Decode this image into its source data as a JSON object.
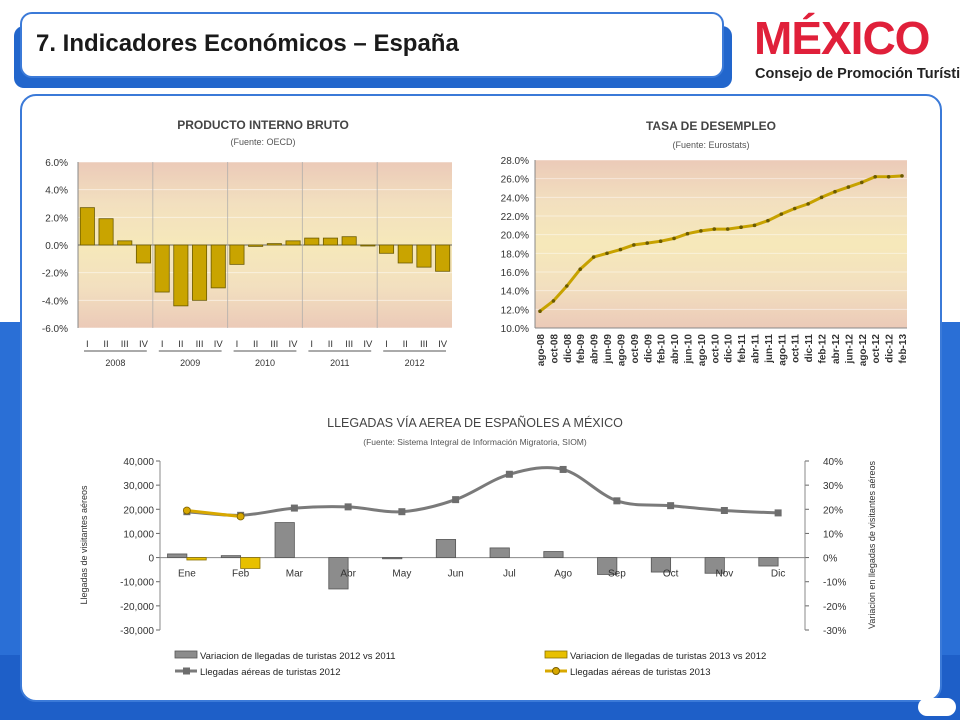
{
  "page": {
    "title": "7. Indicadores Económicos – España",
    "logo_text": "MÉXICO",
    "logo_subtitle": "Consejo de Promoción Turística",
    "colors": {
      "accent_blue": "#2a6fd6",
      "bar_gold": "#c9a400",
      "bar_gray": "#8c8c8c",
      "line_gray": "#7a7a7a",
      "line_gold": "#d8a800"
    }
  },
  "chart_data": [
    {
      "type": "bar",
      "title": "PRODUCTO INTERNO BRUTO",
      "subtitle": "(Fuente: OECD)",
      "yticks": [
        "6.0%",
        "4.0%",
        "2.0%",
        "0.0%",
        "-2.0%",
        "-4.0%",
        "-6.0%"
      ],
      "ylim": [
        -6,
        6
      ],
      "quarter_labels": [
        "I",
        "II",
        "III",
        "IV"
      ],
      "years": [
        "2008",
        "2009",
        "2010",
        "2011",
        "2012"
      ],
      "values": [
        2.7,
        1.9,
        0.3,
        -1.3,
        -3.4,
        -4.4,
        -4.0,
        -3.1,
        -1.4,
        -0.1,
        0.1,
        0.3,
        0.5,
        0.5,
        0.6,
        0.0,
        -0.6,
        -1.3,
        -1.6,
        -1.9
      ]
    },
    {
      "type": "line",
      "title": "TASA DE DESEMPLEO",
      "subtitle": "(Fuente: Eurostats)",
      "yticks": [
        "28.0%",
        "26.0%",
        "24.0%",
        "22.0%",
        "20.0%",
        "18.0%",
        "16.0%",
        "14.0%",
        "12.0%",
        "10.0%"
      ],
      "ylim": [
        10,
        28
      ],
      "xticks": [
        "ago-08",
        "oct-08",
        "dic-08",
        "feb-09",
        "abr-09",
        "jun-09",
        "ago-09",
        "oct-09",
        "dic-09",
        "feb-10",
        "abr-10",
        "jun-10",
        "ago-10",
        "oct-10",
        "dic-10",
        "feb-11",
        "abr-11",
        "jun-11",
        "ago-11",
        "oct-11",
        "dic-11",
        "feb-12",
        "abr-12",
        "jun-12",
        "ago-12",
        "oct-12",
        "dic-12",
        "feb-13"
      ],
      "values": [
        11.8,
        12.9,
        14.5,
        16.3,
        17.6,
        18.0,
        18.4,
        18.9,
        19.1,
        19.3,
        19.6,
        20.1,
        20.4,
        20.6,
        20.6,
        20.8,
        21.0,
        21.5,
        22.2,
        22.8,
        23.3,
        24.0,
        24.6,
        25.1,
        25.6,
        26.2,
        26.2,
        26.3
      ]
    },
    {
      "type": "bar",
      "title": "LLEGADAS VÍA AEREA DE ESPAÑOLES A MÉXICO",
      "subtitle": "(Fuente: Sistema Integral de Información Migratoria, SIOM)",
      "categories": [
        "Ene",
        "Feb",
        "Mar",
        "Abr",
        "May",
        "Jun",
        "Jul",
        "Ago",
        "Sep",
        "Oct",
        "Nov",
        "Dic"
      ],
      "ylabel": "Llegadas de visitantes aéreos",
      "y2label": "Variacion en llegadas de visitantes aéreos",
      "yticks": [
        "40,000",
        "30,000",
        "20,000",
        "10,000",
        "0",
        "-10,000",
        "-20,000",
        "-30,000"
      ],
      "ylim": [
        -30000,
        40000
      ],
      "y2ticks": [
        "40%",
        "30%",
        "20%",
        "10%",
        "0%",
        "-10%",
        "-20%",
        "-30%"
      ],
      "y2lim": [
        -30,
        40
      ],
      "series": [
        {
          "name": "Variacion de llegadas de turistas 2012 vs 2011",
          "kind": "bar",
          "axis": "left",
          "values": [
            1500,
            800,
            14500,
            -13000,
            -500,
            7500,
            4000,
            2500,
            -7000,
            -6000,
            -6500,
            -3500
          ]
        },
        {
          "name": "Variacion de llegadas de turistas 2013 vs 2012",
          "kind": "bar",
          "axis": "left",
          "values": [
            -1000,
            -4500,
            null,
            null,
            null,
            null,
            null,
            null,
            null,
            null,
            null,
            null
          ]
        },
        {
          "name": "Llegadas aéreas de turistas 2012",
          "kind": "line",
          "axis": "right",
          "values": [
            19,
            17.5,
            20.5,
            21,
            19,
            24,
            34.5,
            36.5,
            23.5,
            21.5,
            19.5,
            18.5
          ]
        },
        {
          "name": "Llegadas aéreas de turistas 2013",
          "kind": "line",
          "axis": "right",
          "values": [
            19.5,
            17,
            null,
            null,
            null,
            null,
            null,
            null,
            null,
            null,
            null,
            null
          ]
        }
      ],
      "legend_position": "bottom"
    }
  ]
}
